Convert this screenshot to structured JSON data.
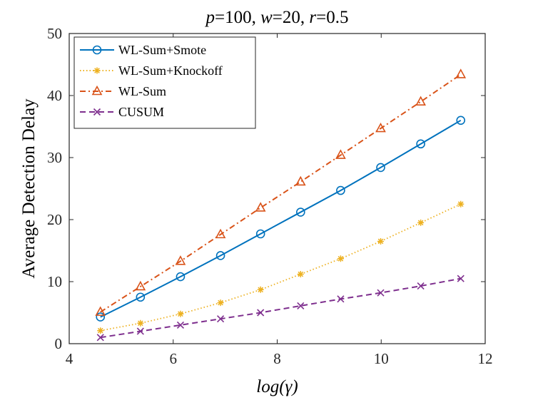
{
  "chart_data": {
    "type": "line",
    "title": "p=100, w=20, r=0.5",
    "title_parts": [
      {
        "text": "p",
        "italic": true
      },
      {
        "text": "=100, ",
        "italic": false
      },
      {
        "text": "w",
        "italic": true
      },
      {
        "text": "=20, ",
        "italic": false
      },
      {
        "text": "r",
        "italic": true
      },
      {
        "text": "=0.5",
        "italic": false
      }
    ],
    "xlabel": "log(γ)",
    "ylabel": "Average Detection Delay",
    "xlim": [
      4,
      12
    ],
    "ylim": [
      0,
      50
    ],
    "xticks": [
      4,
      6,
      8,
      10,
      12
    ],
    "yticks": [
      0,
      10,
      20,
      30,
      40,
      50
    ],
    "grid": false,
    "legend_position": "top-left",
    "x": [
      4.6,
      5.37,
      6.14,
      6.91,
      7.68,
      8.45,
      9.22,
      9.99,
      10.76,
      11.53
    ],
    "series": [
      {
        "name": "WL-Sum+Smote",
        "color": "#0072BD",
        "line_style": "solid",
        "marker": "circle",
        "values": [
          4.3,
          7.5,
          10.8,
          14.2,
          17.7,
          21.2,
          24.7,
          28.4,
          32.2,
          36.0
        ]
      },
      {
        "name": "WL-Sum+Knockoff",
        "color": "#EDB120",
        "line_style": "dotted",
        "marker": "asterisk",
        "values": [
          2.1,
          3.3,
          4.8,
          6.6,
          8.7,
          11.2,
          13.7,
          16.5,
          19.5,
          22.5
        ]
      },
      {
        "name": "WL-Sum",
        "color": "#D95319",
        "line_style": "dashdot",
        "marker": "triangle",
        "values": [
          5.1,
          9.2,
          13.3,
          17.6,
          21.9,
          26.1,
          30.4,
          34.7,
          39.0,
          43.4
        ]
      },
      {
        "name": "CUSUM",
        "color": "#7E2F8E",
        "line_style": "dashed",
        "marker": "x",
        "values": [
          1.0,
          2.0,
          3.0,
          4.0,
          5.0,
          6.1,
          7.2,
          8.2,
          9.3,
          10.5
        ]
      }
    ]
  }
}
